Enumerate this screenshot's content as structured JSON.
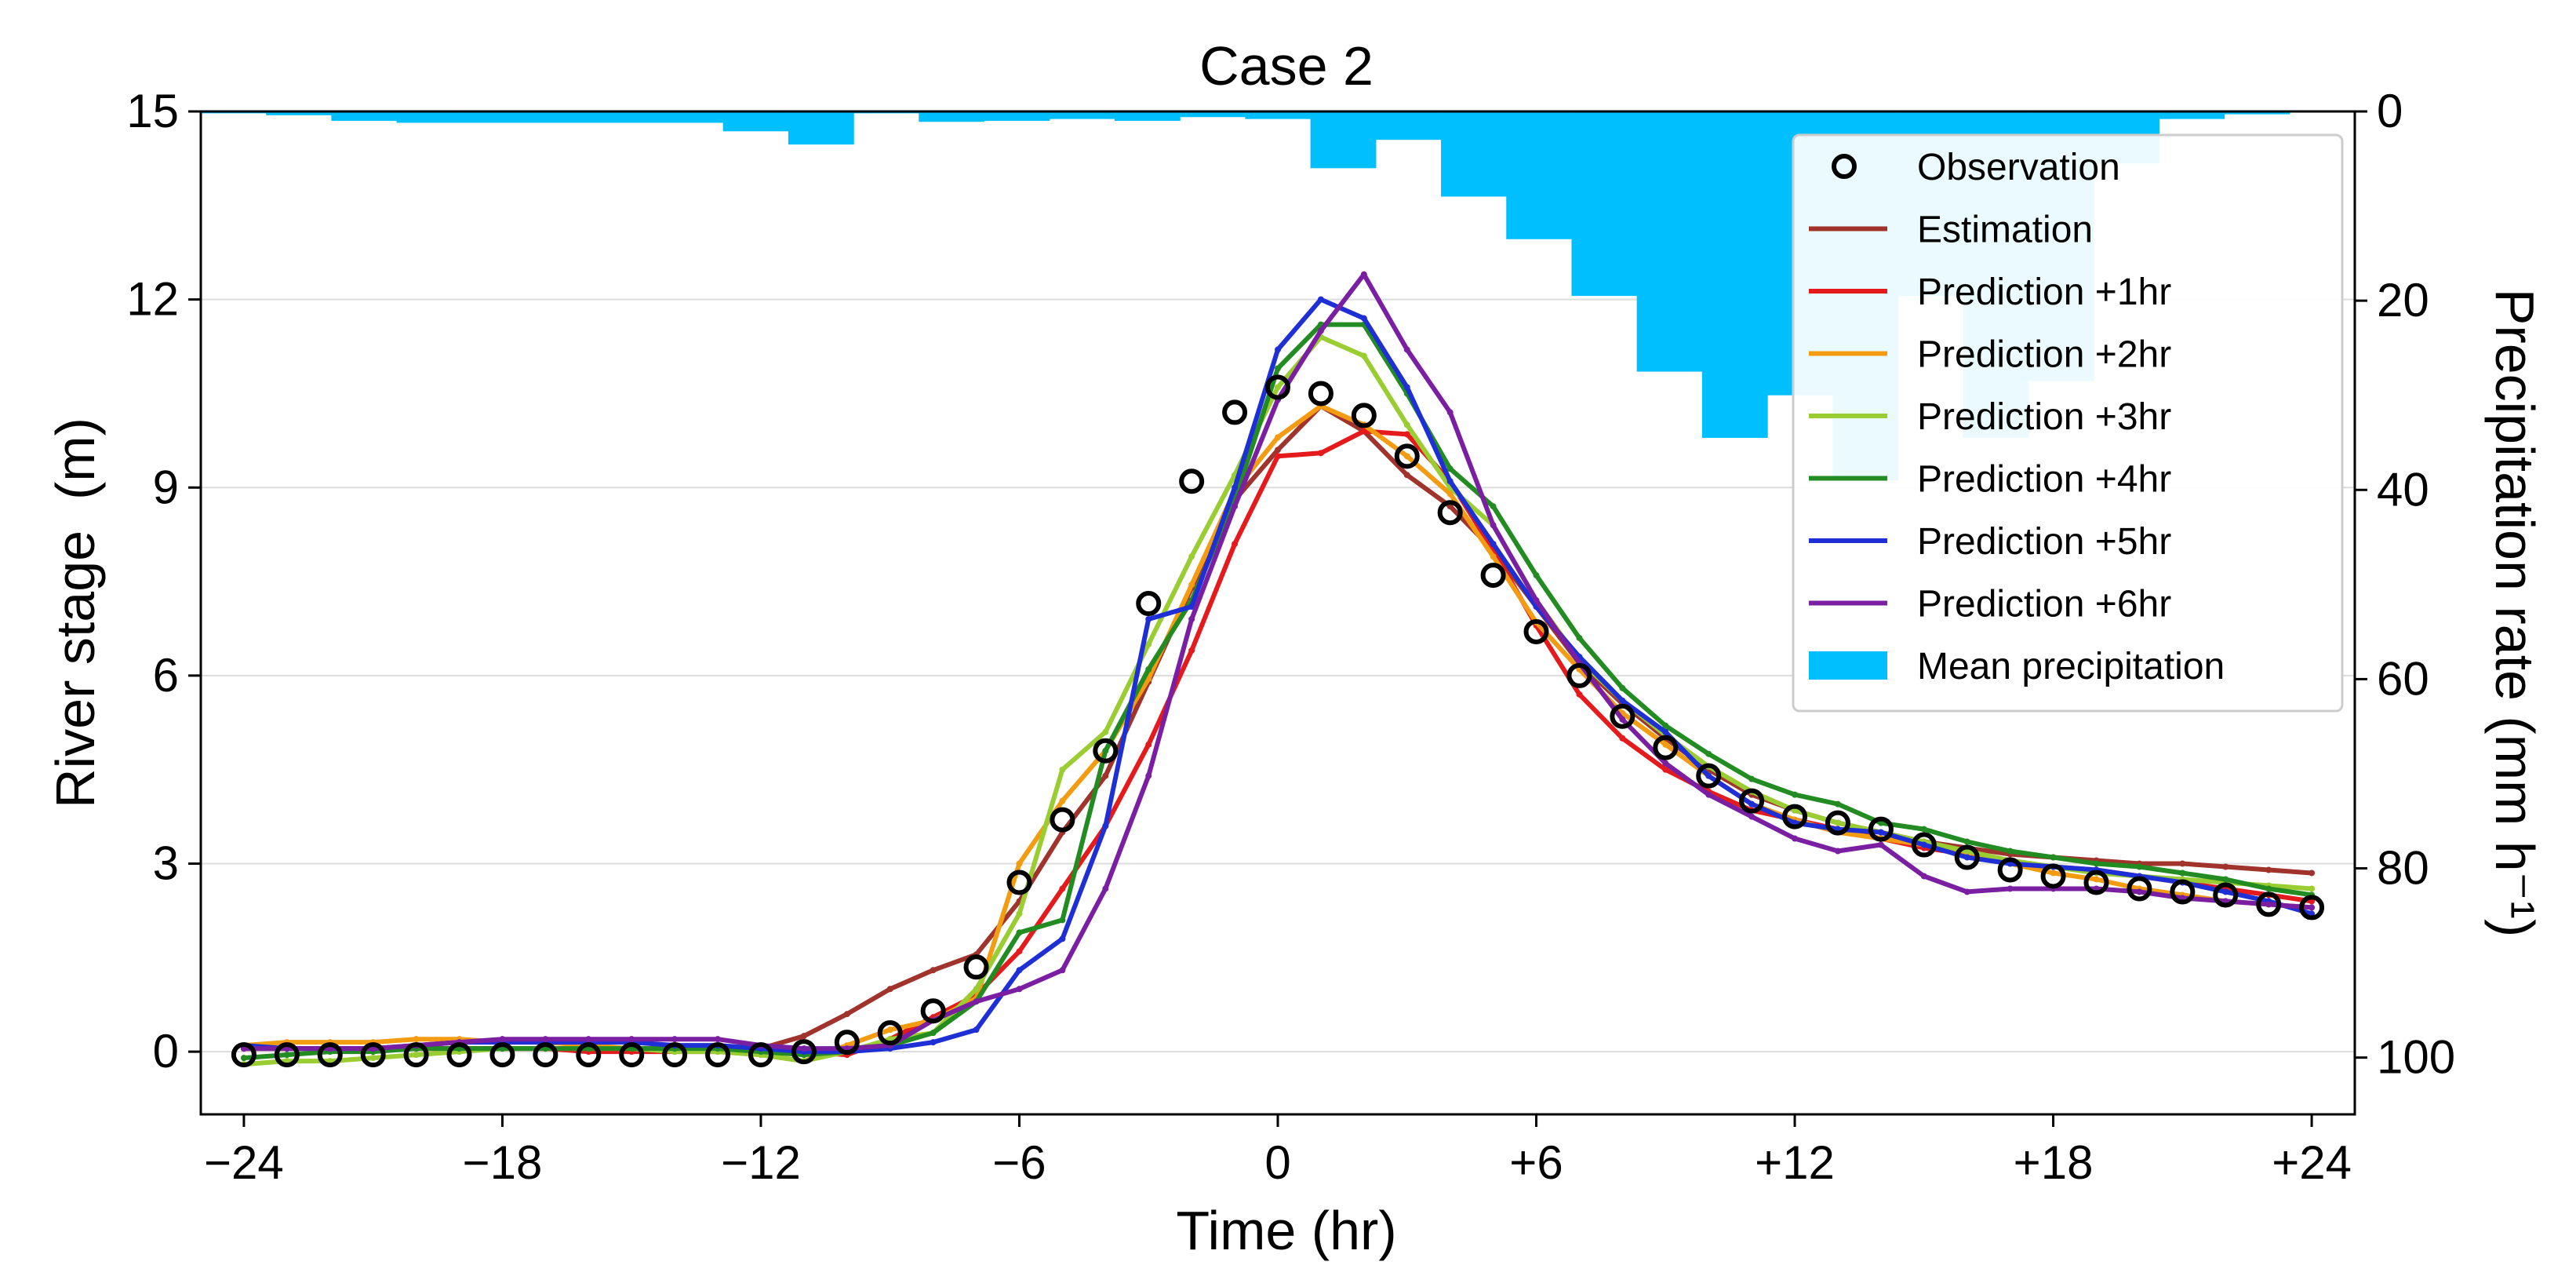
{
  "chart_data": {
    "type": "line",
    "title": "Case 2",
    "xlabel": "Time (hr)",
    "ylabel": "River stage  (m)",
    "y2label": "Precipitation rate (mm h⁻¹)",
    "xlim": [
      -25,
      25
    ],
    "ylim": [
      -1,
      15
    ],
    "y2lim": [
      0,
      106
    ],
    "y2_inverted": true,
    "x_ticks": [
      -24,
      -18,
      -12,
      -6,
      0,
      6,
      12,
      18,
      24
    ],
    "x_tick_labels": [
      "−24",
      "−18",
      "−12",
      "−6",
      "0",
      "+6",
      "+12",
      "+18",
      "+24"
    ],
    "y_ticks": [
      0,
      3,
      6,
      9,
      12,
      15
    ],
    "y_tick_labels": [
      "0",
      "3",
      "6",
      "9",
      "12",
      "15"
    ],
    "y2_ticks": [
      0,
      20,
      40,
      60,
      80,
      100
    ],
    "y2_tick_labels": [
      "0",
      "20",
      "40",
      "60",
      "80",
      "100"
    ],
    "grid": "horizontal",
    "legend_position": "top-right",
    "x": [
      -24,
      -23,
      -22,
      -21,
      -20,
      -19,
      -18,
      -17,
      -16,
      -15,
      -14,
      -13,
      -12,
      -11,
      -10,
      -9,
      -8,
      -7,
      -6,
      -5,
      -4,
      -3,
      -2,
      -1,
      0,
      1,
      2,
      3,
      4,
      5,
      6,
      7,
      8,
      9,
      10,
      11,
      12,
      13,
      14,
      15,
      16,
      17,
      18,
      19,
      20,
      21,
      22,
      23,
      24
    ],
    "observation": {
      "name": "Observation",
      "color": "#000000",
      "values": [
        -0.05,
        -0.05,
        -0.05,
        -0.05,
        -0.05,
        -0.05,
        -0.05,
        -0.05,
        -0.05,
        -0.05,
        -0.05,
        -0.05,
        -0.05,
        0.0,
        0.15,
        0.3,
        0.65,
        1.35,
        2.7,
        3.7,
        4.8,
        7.15,
        9.1,
        10.2,
        10.6,
        10.5,
        10.15,
        9.5,
        8.6,
        7.6,
        6.7,
        6.0,
        5.35,
        4.85,
        4.4,
        4.0,
        3.75,
        3.65,
        3.55,
        3.3,
        3.1,
        2.9,
        2.8,
        2.7,
        2.6,
        2.55,
        2.5,
        2.35,
        2.3
      ]
    },
    "series": [
      {
        "name": "Estimation",
        "color": "#a0342c",
        "values": [
          0.05,
          0.05,
          0.05,
          0.05,
          0.05,
          0.05,
          0.05,
          0.05,
          0.05,
          0.05,
          0.05,
          0.05,
          0.05,
          0.25,
          0.6,
          1.0,
          1.3,
          1.55,
          2.4,
          3.5,
          4.4,
          5.9,
          7.4,
          8.8,
          9.6,
          10.3,
          9.9,
          9.2,
          8.7,
          8.0,
          7.1,
          6.2,
          5.55,
          5.0,
          4.5,
          4.1,
          3.85,
          3.65,
          3.5,
          3.35,
          3.25,
          3.15,
          3.1,
          3.05,
          3.0,
          3.0,
          2.95,
          2.9,
          2.85
        ]
      },
      {
        "name": "Prediction +1hr",
        "color": "#e41a1c",
        "values": [
          0.05,
          0.05,
          0.05,
          0.05,
          0.05,
          0.05,
          0.05,
          0.05,
          0.0,
          0.0,
          0.0,
          0.0,
          0.0,
          0.0,
          -0.05,
          0.2,
          0.55,
          0.9,
          1.6,
          2.6,
          3.6,
          4.9,
          6.4,
          8.1,
          9.5,
          9.55,
          9.9,
          9.85,
          9.1,
          8.0,
          6.8,
          5.7,
          5.0,
          4.5,
          4.15,
          3.85,
          3.7,
          3.55,
          3.4,
          3.25,
          3.15,
          3.0,
          2.95,
          2.9,
          2.8,
          2.7,
          2.6,
          2.5,
          2.4
        ]
      },
      {
        "name": "Prediction +2hr",
        "color": "#f39c12",
        "values": [
          0.1,
          0.15,
          0.15,
          0.15,
          0.2,
          0.2,
          0.15,
          0.15,
          0.1,
          0.05,
          0.05,
          0.0,
          -0.05,
          -0.15,
          0.1,
          0.35,
          0.5,
          0.85,
          3.0,
          4.0,
          4.8,
          5.95,
          7.45,
          8.95,
          9.8,
          10.3,
          10.0,
          9.5,
          8.9,
          7.9,
          6.85,
          6.1,
          5.4,
          4.9,
          4.4,
          3.95,
          3.7,
          3.5,
          3.4,
          3.3,
          3.15,
          3.0,
          2.85,
          2.75,
          2.6,
          2.5,
          2.4,
          2.35,
          2.3
        ]
      },
      {
        "name": "Prediction +3hr",
        "color": "#9acd32",
        "values": [
          -0.2,
          -0.15,
          -0.15,
          -0.1,
          -0.05,
          0.0,
          0.05,
          0.05,
          0.05,
          0.05,
          0.0,
          0.0,
          -0.05,
          -0.15,
          0.0,
          0.2,
          0.3,
          1.0,
          2.2,
          4.5,
          5.1,
          6.5,
          7.9,
          9.2,
          10.6,
          11.4,
          11.1,
          10.0,
          9.0,
          8.4,
          7.2,
          6.25,
          5.6,
          5.05,
          4.55,
          4.15,
          3.85,
          3.65,
          3.5,
          3.35,
          3.2,
          3.05,
          2.95,
          2.85,
          2.8,
          2.75,
          2.7,
          2.65,
          2.6
        ]
      },
      {
        "name": "Prediction +4hr",
        "color": "#228b22",
        "values": [
          -0.1,
          -0.05,
          0.0,
          0.0,
          0.05,
          0.05,
          0.05,
          0.05,
          0.05,
          0.05,
          0.05,
          0.05,
          0.0,
          -0.05,
          0.0,
          0.1,
          0.3,
          0.8,
          1.9,
          2.1,
          4.8,
          6.1,
          7.2,
          8.8,
          10.9,
          11.6,
          11.6,
          10.5,
          9.3,
          8.7,
          7.6,
          6.6,
          5.8,
          5.2,
          4.75,
          4.35,
          4.1,
          3.95,
          3.65,
          3.55,
          3.35,
          3.2,
          3.1,
          3.0,
          2.95,
          2.85,
          2.75,
          2.6,
          2.5
        ]
      },
      {
        "name": "Prediction +5hr",
        "color": "#1f2fd6",
        "values": [
          0.1,
          0.05,
          0.05,
          0.05,
          0.1,
          0.15,
          0.15,
          0.15,
          0.15,
          0.15,
          0.1,
          0.1,
          0.05,
          0.0,
          0.0,
          0.05,
          0.15,
          0.35,
          1.3,
          1.8,
          3.6,
          6.9,
          7.1,
          9.0,
          11.2,
          12.0,
          11.7,
          10.6,
          9.1,
          8.1,
          7.1,
          6.3,
          5.6,
          5.1,
          4.4,
          3.95,
          3.65,
          3.55,
          3.5,
          3.3,
          3.1,
          3.0,
          2.95,
          2.9,
          2.8,
          2.7,
          2.55,
          2.4,
          2.2
        ]
      },
      {
        "name": "Prediction +6hr",
        "color": "#7b1fa2",
        "values": [
          0.05,
          0.05,
          0.05,
          0.05,
          0.1,
          0.15,
          0.2,
          0.2,
          0.2,
          0.2,
          0.2,
          0.2,
          0.1,
          0.05,
          0.05,
          0.1,
          0.5,
          0.8,
          1.0,
          1.3,
          2.6,
          4.4,
          6.9,
          8.7,
          10.4,
          11.5,
          12.4,
          11.2,
          10.2,
          8.4,
          7.2,
          6.2,
          5.3,
          4.6,
          4.1,
          3.75,
          3.4,
          3.2,
          3.3,
          2.8,
          2.55,
          2.6,
          2.6,
          2.6,
          2.55,
          2.45,
          2.4,
          2.35,
          2.3
        ]
      }
    ],
    "precipitation": {
      "name": "Mean precipitation",
      "color": "#00bfff",
      "values": [
        0.2,
        0.4,
        1.0,
        1.2,
        1.2,
        1.2,
        1.2,
        1.2,
        2.1,
        3.5,
        0.2,
        1.1,
        1.0,
        0.8,
        1.0,
        0.6,
        0.8,
        6.0,
        3.0,
        9.0,
        13.5,
        19.5,
        27.5,
        34.5,
        30.0,
        39.0,
        19.5,
        34.5,
        28.5,
        5.5,
        0.8,
        0.3,
        0.05
      ]
    },
    "legend": [
      {
        "label": "Observation",
        "kind": "marker",
        "color": "#000000"
      },
      {
        "label": "Estimation",
        "kind": "line",
        "color": "#a0342c"
      },
      {
        "label": "Prediction +1hr",
        "kind": "line",
        "color": "#e41a1c"
      },
      {
        "label": "Prediction +2hr",
        "kind": "line",
        "color": "#f39c12"
      },
      {
        "label": "Prediction +3hr",
        "kind": "line",
        "color": "#9acd32"
      },
      {
        "label": "Prediction +4hr",
        "kind": "line",
        "color": "#228b22"
      },
      {
        "label": "Prediction +5hr",
        "kind": "line",
        "color": "#1f2fd6"
      },
      {
        "label": "Prediction +6hr",
        "kind": "line",
        "color": "#7b1fa2"
      },
      {
        "label": "Mean precipitation",
        "kind": "patch",
        "color": "#00bfff"
      }
    ]
  }
}
